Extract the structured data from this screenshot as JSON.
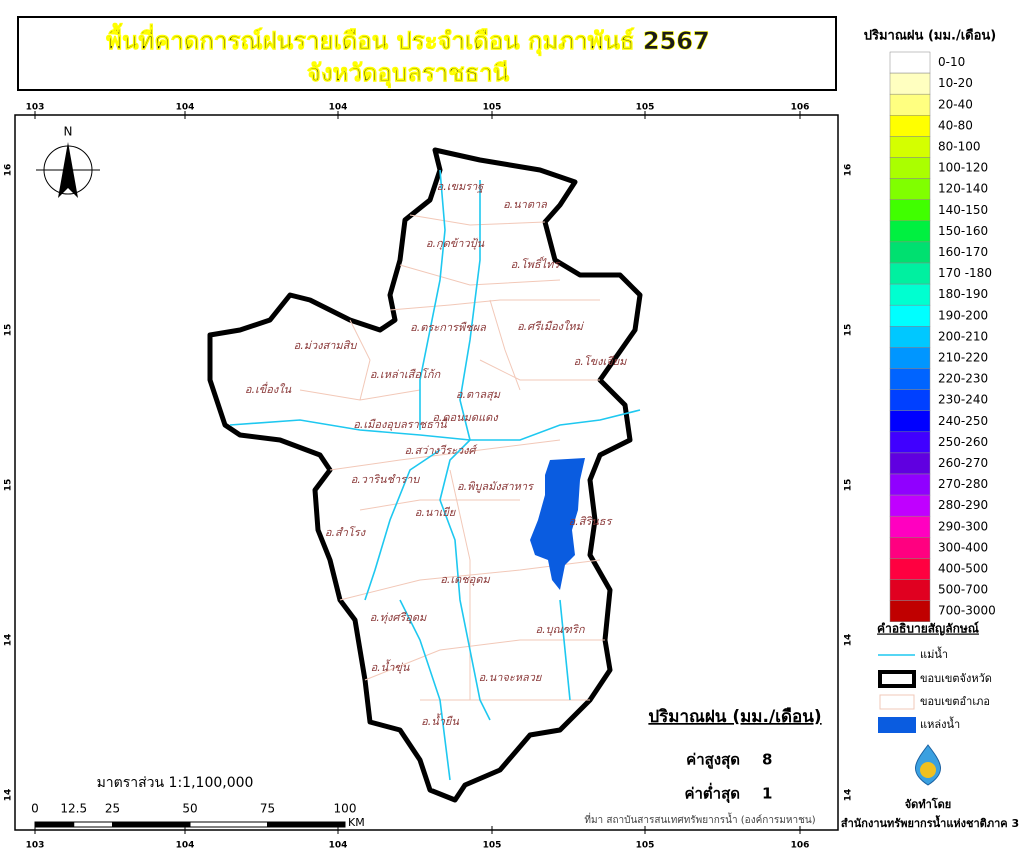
{
  "title": [
    "พื้นที่คาดการณ์ฝนรายเดือน ประจำเดือน กุมภาพันธ์ 2567",
    "จังหวัดอุบลราชธานี"
  ],
  "lon_labels": [
    103,
    104,
    104,
    105,
    105,
    106
  ],
  "lat_labels": [
    16,
    15,
    15,
    14,
    14
  ],
  "north": "N",
  "districts": [
    "อ.เขมราฐ",
    "อ.นาตาล",
    "อ.กุดข้าวปุ้น",
    "อ.โพธิ์ไทร",
    "อ.ตระการพืชผล",
    "อ.ศรีเมืองใหม่",
    "อ.ม่วงสามสิบ",
    "อ.โขงเจียม",
    "อ.เหล่าเสือโก้ก",
    "อ.เขื่องใน",
    "อ.ตาลสุม",
    "อ.ดอนมดแดง",
    "อ.เมืองอุบลราชธานี",
    "อ.สว่างวีระวงศ์",
    "อ.วารินชำราบ",
    "อ.พิบูลมังสาหาร",
    "อ.นาเยีย",
    "อ.สิรินธร",
    "อ.สำโรง",
    "อ.เดชอุดม",
    "อ.ทุ่งศรีอุดม",
    "อ.บุณฑริก",
    "อ.น้ำขุ่น",
    "อ.นาจะหลวย",
    "อ.น้ำยืน"
  ],
  "rain_legend": {
    "title": "ปริมาณฝน (มม./เดือน)",
    "items": [
      {
        "label": "0-10",
        "color": "#ffffff"
      },
      {
        "label": "10-20",
        "color": "#ffffc0"
      },
      {
        "label": "20-40",
        "color": "#ffff80"
      },
      {
        "label": "40-80",
        "color": "#ffff00"
      },
      {
        "label": "80-100",
        "color": "#d4ff00"
      },
      {
        "label": "100-120",
        "color": "#aaff00"
      },
      {
        "label": "120-140",
        "color": "#80ff00"
      },
      {
        "label": "140-150",
        "color": "#40ff00"
      },
      {
        "label": "150-160",
        "color": "#00f040"
      },
      {
        "label": "160-170",
        "color": "#00e070"
      },
      {
        "label": "170 -180",
        "color": "#00f0a0"
      },
      {
        "label": "180-190",
        "color": "#00ffd0"
      },
      {
        "label": "190-200",
        "color": "#00ffff"
      },
      {
        "label": "200-210",
        "color": "#00c8ff"
      },
      {
        "label": "210-220",
        "color": "#0096ff"
      },
      {
        "label": "220-230",
        "color": "#0064ff"
      },
      {
        "label": "230-240",
        "color": "#0040ff"
      },
      {
        "label": "240-250",
        "color": "#0000ff"
      },
      {
        "label": "250-260",
        "color": "#4000ff"
      },
      {
        "label": "260-270",
        "color": "#6000e0"
      },
      {
        "label": "270-280",
        "color": "#9000ff"
      },
      {
        "label": "280-290",
        "color": "#c000ff"
      },
      {
        "label": "290-300",
        "color": "#ff00c0"
      },
      {
        "label": "300-400",
        "color": "#ff0080"
      },
      {
        "label": "400-500",
        "color": "#ff0040"
      },
      {
        "label": "500-700",
        "color": "#e00020"
      },
      {
        "label": "700-3000",
        "color": "#c00000"
      }
    ]
  },
  "symbol_legend": {
    "title": "คำอธิบายสัญลักษณ์",
    "items": [
      "แม่น้ำ",
      "ขอบเขตจังหวัด",
      "ขอบเขตอำเภอ",
      "แหล่งน้ำ"
    ]
  },
  "summary": {
    "title": "ปริมาณฝน (มม./เดือน)",
    "max_label": "ค่าสูงสุด",
    "max": 8,
    "min_label": "ค่าต่ำสุด",
    "min": 1
  },
  "scale": {
    "text": "มาตราส่วน 1:1,100,000",
    "ticks": [
      0,
      12.5,
      25,
      50,
      75,
      100
    ],
    "unit": "KM"
  },
  "source": "ที่มา  สถาบันสารสนเทศทรัพยากรน้ำ (องค์การมหาชน)",
  "credit": {
    "label": "จัดทำโดย",
    "org": "สำนักงานทรัพยากรน้ำแห่งชาติภาค 3"
  }
}
